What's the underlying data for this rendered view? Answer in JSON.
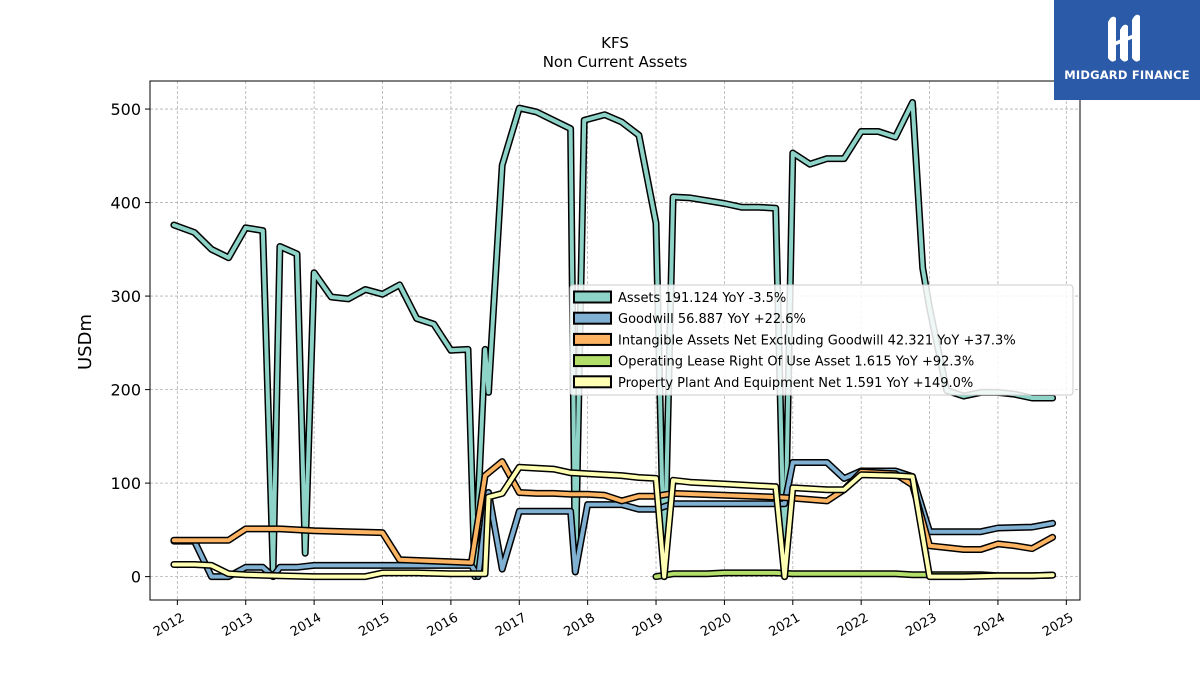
{
  "logo": {
    "text": "MIDGARD FINANCE"
  },
  "chart_data": {
    "type": "line",
    "title": "KFS",
    "subtitle": "Non Current  Assets",
    "ylabel": "USDm",
    "xlabel": "",
    "xlim": [
      2011.6,
      2025.2
    ],
    "ylim": [
      -25,
      530
    ],
    "yticks": [
      0,
      100,
      200,
      300,
      400,
      500
    ],
    "xticks": [
      "2012",
      "2013",
      "2014",
      "2015",
      "2016",
      "2017",
      "2018",
      "2019",
      "2020",
      "2021",
      "2022",
      "2023",
      "2024",
      "2025"
    ],
    "grid": true,
    "legend_position": "center-right",
    "series": [
      {
        "name": "Assets  191.124 YoY -3.5%",
        "color": "#8dd3c7",
        "x": [
          2011.95,
          2012.25,
          2012.5,
          2012.75,
          2013.0,
          2013.25,
          2013.4,
          2013.5,
          2013.75,
          2013.87,
          2014.0,
          2014.25,
          2014.5,
          2014.75,
          2015.0,
          2015.25,
          2015.5,
          2015.75,
          2016.0,
          2016.25,
          2016.35,
          2016.5,
          2016.55,
          2016.75,
          2017.0,
          2017.25,
          2017.5,
          2017.75,
          2017.82,
          2017.95,
          2018.25,
          2018.5,
          2018.75,
          2019.0,
          2019.12,
          2019.25,
          2019.5,
          2019.75,
          2020.0,
          2020.25,
          2020.5,
          2020.75,
          2020.88,
          2021.0,
          2021.25,
          2021.5,
          2021.75,
          2022.0,
          2022.25,
          2022.5,
          2022.75,
          2022.9,
          2023.0,
          2023.25,
          2023.5,
          2023.75,
          2024.0,
          2024.25,
          2024.5,
          2024.8
        ],
        "y": [
          376,
          368,
          350,
          341,
          373,
          370,
          7,
          353,
          345,
          25,
          325,
          299,
          297,
          307,
          302,
          312,
          276,
          270,
          242,
          243,
          0,
          243,
          197,
          440,
          501,
          497,
          488,
          479,
          5,
          488,
          494,
          486,
          472,
          378,
          0,
          406,
          405,
          402,
          399,
          395,
          395,
          394,
          0,
          453,
          441,
          447,
          447,
          476,
          476,
          470,
          507,
          330,
          287,
          199,
          193,
          197,
          197,
          195,
          191,
          191
        ]
      },
      {
        "name": "Goodwill  56.887 YoY +22.6%",
        "color": "#80b1d3",
        "x": [
          2011.95,
          2012.25,
          2012.5,
          2012.75,
          2013.0,
          2013.25,
          2013.4,
          2013.5,
          2013.75,
          2014.0,
          2014.5,
          2015.0,
          2015.25,
          2016.0,
          2016.3,
          2016.4,
          2016.55,
          2016.75,
          2017.0,
          2017.5,
          2017.75,
          2017.82,
          2018.0,
          2018.5,
          2018.75,
          2019.0,
          2019.25,
          2020.0,
          2020.88,
          2021.0,
          2021.25,
          2021.5,
          2021.75,
          2022.0,
          2022.25,
          2022.5,
          2022.75,
          2023.0,
          2023.25,
          2023.75,
          2024.0,
          2024.5,
          2024.8
        ],
        "y": [
          38,
          38,
          0,
          0,
          10,
          10,
          0,
          10,
          10,
          12,
          12,
          12,
          12,
          12,
          12,
          0,
          90,
          8,
          70,
          70,
          70,
          5,
          77,
          77,
          72,
          72,
          78,
          78,
          78,
          122,
          122,
          122,
          105,
          113,
          113,
          113,
          107,
          48,
          48,
          48,
          52,
          53,
          57
        ]
      },
      {
        "name": "Intangible Assets Net Excluding Goodwill  42.321 YoY +37.3%",
        "color": "#fdb462",
        "x": [
          2011.95,
          2012.25,
          2012.5,
          2012.75,
          2013.0,
          2013.25,
          2013.5,
          2014.0,
          2014.5,
          2015.0,
          2015.25,
          2016.0,
          2016.3,
          2016.5,
          2016.75,
          2017.0,
          2017.25,
          2017.5,
          2017.75,
          2018.0,
          2018.25,
          2018.5,
          2018.75,
          2019.0,
          2019.25,
          2020.0,
          2020.75,
          2021.0,
          2021.5,
          2021.75,
          2022.0,
          2022.5,
          2022.75,
          2023.0,
          2023.25,
          2023.5,
          2023.75,
          2024.0,
          2024.25,
          2024.5,
          2024.8
        ],
        "y": [
          39,
          39,
          39,
          39,
          51,
          51,
          51,
          49,
          48,
          47,
          18,
          16,
          15,
          108,
          123,
          90,
          89,
          89,
          88,
          88,
          87,
          81,
          86,
          86,
          89,
          87,
          85,
          84,
          81,
          93,
          112,
          110,
          98,
          33,
          31,
          29,
          29,
          35,
          33,
          30,
          42
        ]
      },
      {
        "name": "Operating Lease Right Of Use Asset  1.615 YoY +92.3%",
        "color": "#b3de69",
        "x": [
          2019.0,
          2019.25,
          2019.5,
          2019.75,
          2020.0,
          2020.25,
          2020.5,
          2020.75,
          2021.0,
          2021.25,
          2021.5,
          2021.75,
          2022.0,
          2022.25,
          2022.5,
          2022.75,
          2023.0,
          2023.25,
          2023.5,
          2023.75,
          2024.0,
          2024.25,
          2024.5,
          2024.8
        ],
        "y": [
          0,
          3,
          3,
          3,
          4,
          4,
          4,
          4,
          3,
          3,
          3,
          3,
          3,
          3,
          3,
          2,
          2,
          2,
          2,
          2,
          1,
          1,
          1,
          1.6
        ]
      },
      {
        "name": "Property Plant And Equipment Net  1.591 YoY +149.0%",
        "color": "#ffffb3",
        "x": [
          2011.95,
          2012.25,
          2012.5,
          2012.75,
          2013.0,
          2013.5,
          2014.0,
          2014.5,
          2014.75,
          2015.0,
          2015.5,
          2016.0,
          2016.5,
          2016.55,
          2016.75,
          2017.0,
          2017.5,
          2017.75,
          2018.0,
          2018.5,
          2018.75,
          2019.0,
          2019.12,
          2019.25,
          2019.5,
          2020.0,
          2020.75,
          2020.88,
          2021.0,
          2021.5,
          2021.75,
          2022.0,
          2022.5,
          2022.75,
          2023.0,
          2023.25,
          2023.5,
          2024.0,
          2024.5,
          2024.8
        ],
        "y": [
          13,
          13,
          12,
          3,
          2,
          1,
          0,
          0,
          0,
          4,
          4,
          3,
          3,
          85,
          89,
          117,
          115,
          111,
          110,
          108,
          106,
          105,
          0,
          103,
          101,
          99,
          96,
          0,
          95,
          93,
          93,
          109,
          108,
          107,
          0,
          0,
          0,
          1,
          1,
          1.6
        ]
      }
    ]
  }
}
